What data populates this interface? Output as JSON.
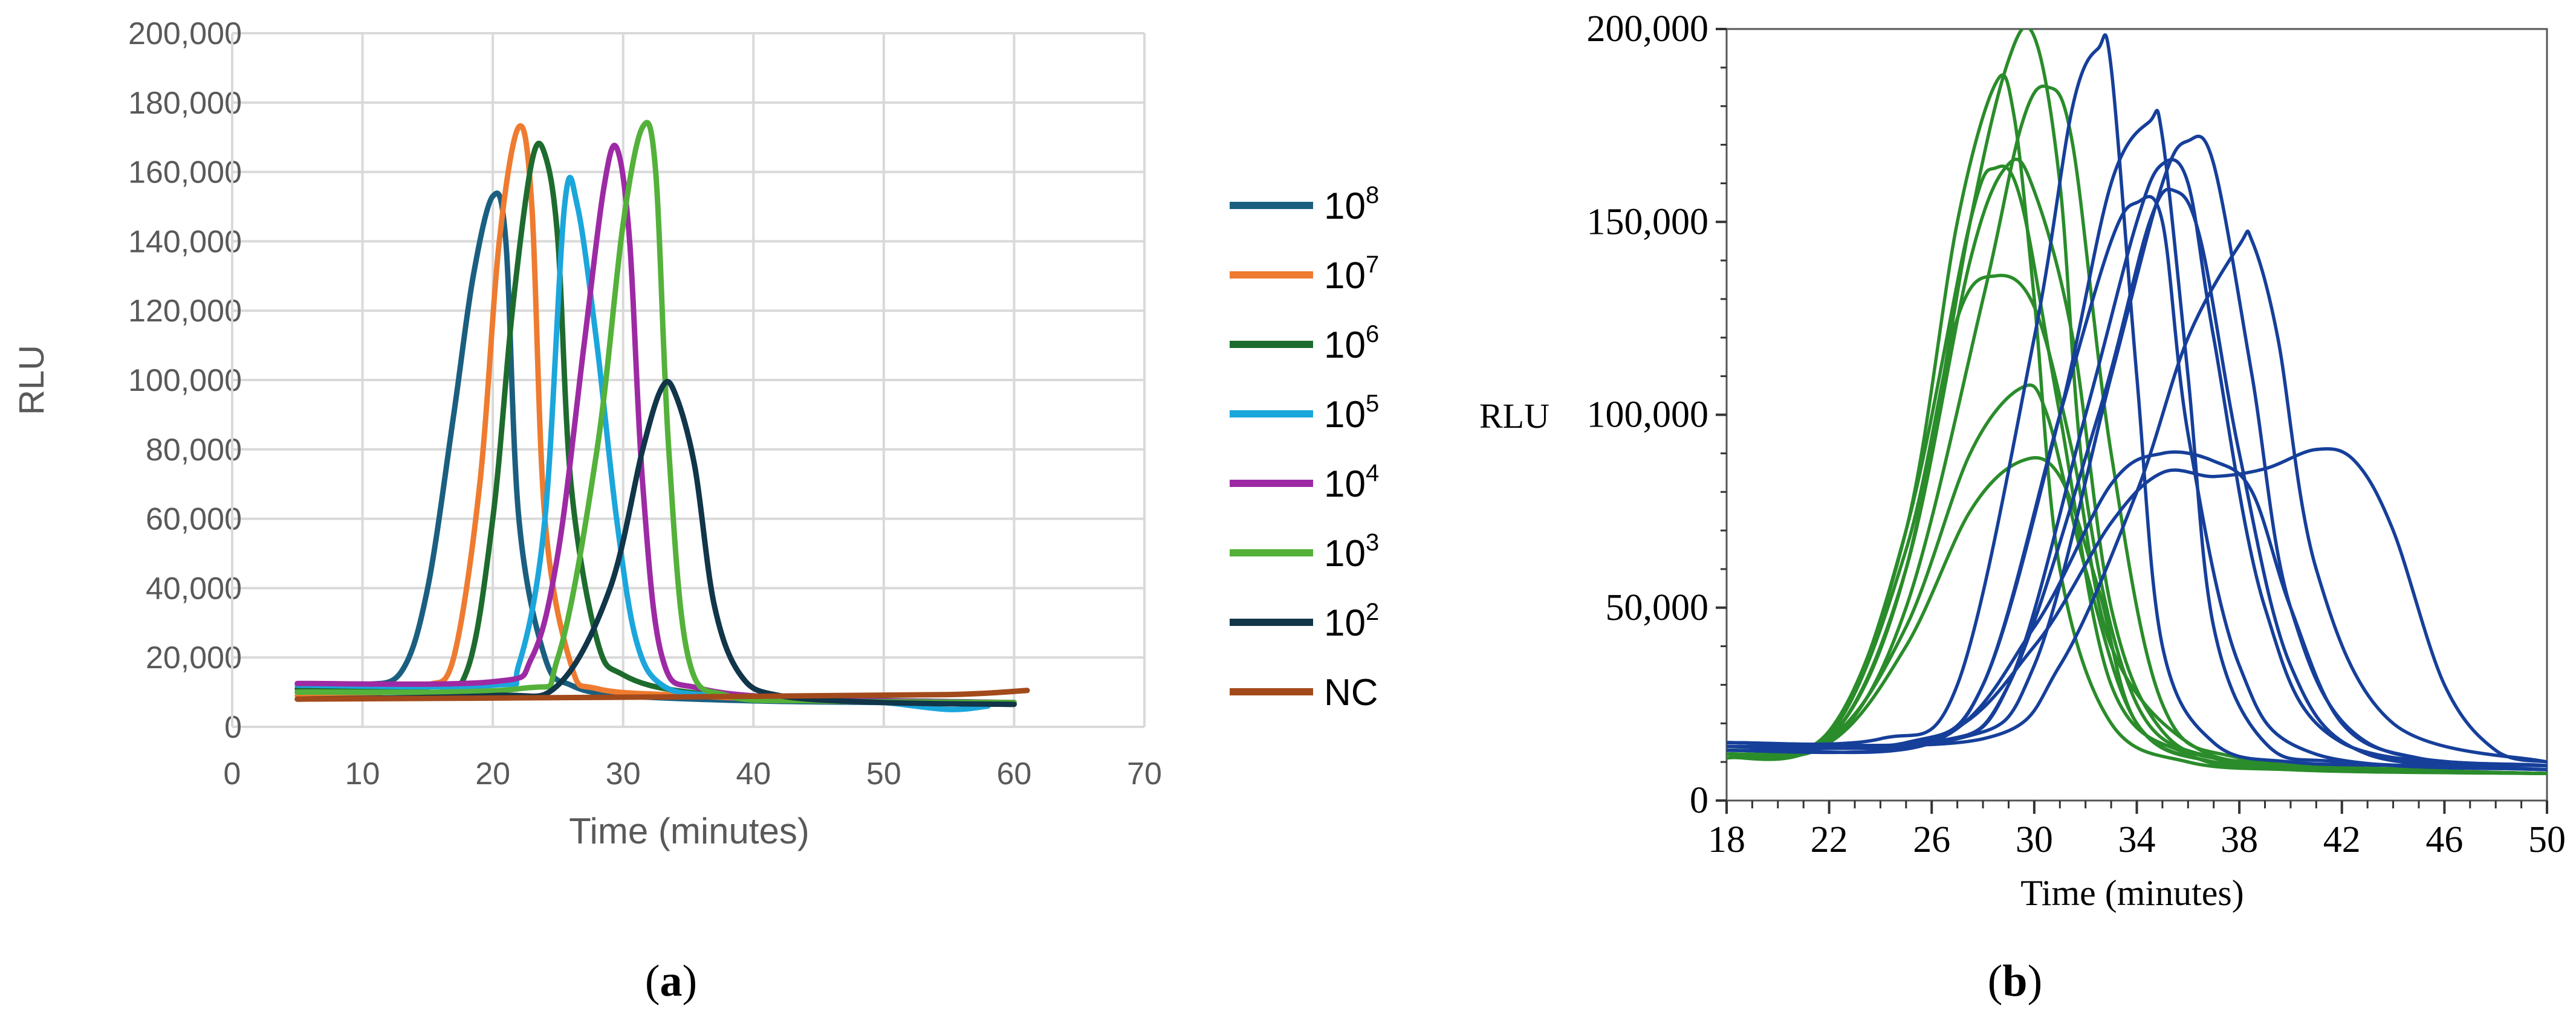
{
  "panels": {
    "a": {
      "label_open": "(",
      "label_letter": "a",
      "label_close": ")"
    },
    "b": {
      "label_open": "(",
      "label_letter": "b",
      "label_close": ")"
    }
  },
  "chart_data": [
    {
      "id": "a",
      "type": "line",
      "title": "",
      "xlabel": "Time (minutes)",
      "ylabel": "RLU",
      "xlim": [
        0,
        70
      ],
      "ylim": [
        0,
        200000
      ],
      "x_ticks": [
        0,
        10,
        20,
        30,
        40,
        50,
        60,
        70
      ],
      "x_tick_labels": [
        "0",
        "10",
        "20",
        "30",
        "40",
        "50",
        "60",
        "70"
      ],
      "y_ticks": [
        0,
        20000,
        40000,
        60000,
        80000,
        100000,
        120000,
        140000,
        160000,
        180000,
        200000
      ],
      "y_tick_labels": [
        "0",
        "20,000",
        "40,000",
        "60,000",
        "80,000",
        "100,000",
        "120,000",
        "140,000",
        "160,000",
        "180,000",
        "200,000"
      ],
      "grid": true,
      "legend_position": "right",
      "series": [
        {
          "name": "10",
          "sup": "8",
          "color": "#1b5f80",
          "x": [
            5,
            10,
            13,
            15,
            17,
            18.5,
            20,
            21,
            22,
            24,
            26,
            30,
            40,
            50,
            60
          ],
          "y": [
            10000,
            12000,
            16000,
            40000,
            90000,
            130000,
            153000,
            140000,
            60000,
            20000,
            12000,
            9000,
            7500,
            7000,
            6500
          ]
        },
        {
          "name": "10",
          "sup": "7",
          "color": "#ee7b2f",
          "x": [
            5,
            12,
            15,
            17,
            19,
            20.5,
            22,
            23,
            24,
            26,
            28,
            35,
            45,
            60
          ],
          "y": [
            9000,
            10000,
            12000,
            20000,
            70000,
            140000,
            173000,
            150000,
            60000,
            18000,
            11000,
            9000,
            7500,
            6500
          ]
        },
        {
          "name": "10",
          "sup": "6",
          "color": "#1e6b2e",
          "x": [
            5,
            15,
            18,
            20,
            21.5,
            23,
            24,
            25,
            26,
            28,
            30,
            35,
            45,
            60
          ],
          "y": [
            11000,
            11500,
            16000,
            60000,
            120000,
            163000,
            165000,
            140000,
            70000,
            25000,
            15000,
            10000,
            8000,
            7000
          ]
        },
        {
          "name": "10",
          "sup": "5",
          "color": "#1ba6dc",
          "x": [
            5,
            20,
            22,
            24,
            25.5,
            26.5,
            28,
            29.5,
            31,
            33,
            37,
            45,
            50,
            55,
            58
          ],
          "y": [
            12000,
            12000,
            18000,
            60000,
            150000,
            150000,
            110000,
            60000,
            25000,
            12000,
            9000,
            8000,
            7000,
            5000,
            6000
          ]
        },
        {
          "name": "10",
          "sup": "4",
          "color": "#9d2aa4",
          "x": [
            5,
            20,
            23,
            25,
            27,
            28.5,
            29.5,
            30.5,
            31.5,
            33,
            36,
            45,
            60
          ],
          "y": [
            12500,
            13000,
            20000,
            50000,
            110000,
            155000,
            167000,
            140000,
            70000,
            20000,
            11000,
            8000,
            7000
          ]
        },
        {
          "name": "10",
          "sup": "3",
          "color": "#54b13a",
          "x": [
            5,
            22,
            25,
            28,
            30,
            31.5,
            32.5,
            33.5,
            35,
            38,
            45,
            60
          ],
          "y": [
            10000,
            11000,
            20000,
            80000,
            145000,
            173000,
            160000,
            80000,
            20000,
            9000,
            7500,
            7000
          ]
        },
        {
          "name": "10",
          "sup": "2",
          "color": "#113549",
          "x": [
            5,
            20,
            25,
            29,
            31.5,
            33,
            34,
            35.5,
            37,
            39,
            42,
            50,
            60
          ],
          "y": [
            8000,
            9000,
            12000,
            40000,
            80000,
            98000,
            96000,
            75000,
            35000,
            15000,
            9000,
            7000,
            6500
          ]
        },
        {
          "name": "NC",
          "sup": "",
          "color": "#a34a1c",
          "x": [
            5,
            20,
            40,
            55,
            61
          ],
          "y": [
            8000,
            8300,
            8800,
            9300,
            10500
          ]
        }
      ]
    },
    {
      "id": "b",
      "type": "line",
      "title": "",
      "xlabel": "Time (minutes)",
      "ylabel": "RLU",
      "xlim": [
        18,
        50
      ],
      "ylim": [
        0,
        200000
      ],
      "x_ticks": [
        18,
        22,
        26,
        30,
        34,
        38,
        42,
        46,
        50
      ],
      "x_tick_labels": [
        "18",
        "22",
        "26",
        "30",
        "34",
        "38",
        "42",
        "46",
        "50"
      ],
      "y_ticks": [
        0,
        50000,
        100000,
        150000,
        200000
      ],
      "y_tick_labels": [
        "0",
        "50,000",
        "100,000",
        "150,000",
        "200,000"
      ],
      "grid": false,
      "series": [
        {
          "group": "green",
          "color": "#2a8c2a",
          "x": [
            18,
            22,
            25,
            27,
            28.5,
            29.2,
            30,
            31,
            33,
            36,
            40,
            44,
            50
          ],
          "y": [
            11000,
            18000,
            70000,
            150000,
            186000,
            178000,
            130000,
            60000,
            20000,
            10000,
            8000,
            7500,
            7000
          ]
        },
        {
          "group": "green",
          "color": "#2a8c2a",
          "x": [
            18,
            22,
            25,
            27.5,
            29,
            30,
            31,
            32,
            34,
            37,
            42,
            50
          ],
          "y": [
            12000,
            16000,
            60000,
            150000,
            192000,
            198000,
            160000,
            80000,
            25000,
            11000,
            8000,
            7000
          ]
        },
        {
          "group": "green",
          "color": "#2a8c2a",
          "x": [
            18,
            22,
            25,
            28,
            29.5,
            30.5,
            31.5,
            33,
            35,
            38,
            45,
            50
          ],
          "y": [
            12000,
            15000,
            50000,
            130000,
            175000,
            185000,
            170000,
            90000,
            25000,
            11000,
            8000,
            7000
          ]
        },
        {
          "group": "green",
          "color": "#2a8c2a",
          "x": [
            18,
            22,
            25,
            27.5,
            28.5,
            29.5,
            31,
            33,
            36,
            40,
            50
          ],
          "y": [
            11000,
            17000,
            70000,
            150000,
            164000,
            155000,
            100000,
            30000,
            12000,
            8000,
            7000
          ]
        },
        {
          "group": "green",
          "color": "#2a8c2a",
          "x": [
            18,
            22,
            25,
            27.5,
            29,
            30,
            31.5,
            33,
            35,
            38,
            44,
            50
          ],
          "y": [
            12000,
            16000,
            60000,
            140000,
            165000,
            158000,
            120000,
            50000,
            18000,
            10000,
            8000,
            7000
          ]
        },
        {
          "group": "green",
          "color": "#2a8c2a",
          "x": [
            18,
            22,
            25,
            27,
            28.5,
            30,
            31.5,
            33,
            36,
            40,
            50
          ],
          "y": [
            12000,
            17000,
            65000,
            125000,
            136000,
            128000,
            90000,
            40000,
            15000,
            9000,
            7000
          ]
        },
        {
          "group": "green",
          "color": "#2a8c2a",
          "x": [
            18,
            22,
            25,
            27.5,
            29.5,
            30.5,
            32,
            34,
            37,
            42,
            50
          ],
          "y": [
            13000,
            16000,
            45000,
            90000,
            107000,
            100000,
            60000,
            20000,
            10000,
            8000,
            7000
          ]
        },
        {
          "group": "green",
          "color": "#2a8c2a",
          "x": [
            18,
            22,
            25,
            27.5,
            29.5,
            31,
            32.5,
            34,
            37,
            42,
            50
          ],
          "y": [
            12000,
            15000,
            40000,
            75000,
            88000,
            84000,
            55000,
            20000,
            10000,
            8000,
            7000
          ]
        },
        {
          "group": "blue",
          "color": "#163f9a",
          "x": [
            18,
            24,
            27,
            30,
            31.5,
            32.5,
            33,
            34,
            35,
            37,
            40,
            45,
            50
          ],
          "y": [
            15000,
            16000,
            30000,
            120000,
            180000,
            195000,
            190000,
            110000,
            40000,
            15000,
            10000,
            9000,
            8000
          ]
        },
        {
          "group": "blue",
          "color": "#163f9a",
          "x": [
            18,
            25,
            28,
            31,
            33,
            34.5,
            35,
            36,
            37,
            39,
            42,
            50
          ],
          "y": [
            14000,
            15000,
            30000,
            100000,
            160000,
            176000,
            172000,
            110000,
            45000,
            15000,
            10000,
            8000
          ]
        },
        {
          "group": "blue",
          "color": "#163f9a",
          "x": [
            18,
            25,
            28,
            31,
            33,
            34,
            35,
            36,
            38,
            41,
            50
          ],
          "y": [
            13000,
            14000,
            30000,
            100000,
            145000,
            155000,
            150000,
            95000,
            35000,
            12000,
            8000
          ]
        },
        {
          "group": "blue",
          "color": "#163f9a",
          "x": [
            18,
            26,
            29,
            32,
            34,
            35,
            36,
            37,
            39,
            42,
            50
          ],
          "y": [
            14000,
            15000,
            30000,
            100000,
            150000,
            165000,
            160000,
            120000,
            50000,
            15000,
            9000
          ]
        },
        {
          "group": "blue",
          "color": "#163f9a",
          "x": [
            18,
            26,
            29,
            32.5,
            34.5,
            35.5,
            36.5,
            38,
            40,
            43,
            50
          ],
          "y": [
            14000,
            15000,
            30000,
            100000,
            150000,
            158000,
            145000,
            90000,
            35000,
            12000,
            9000
          ]
        },
        {
          "group": "blue",
          "color": "#163f9a",
          "x": [
            18,
            27,
            30,
            33,
            35,
            36,
            37,
            38.5,
            40,
            43,
            50
          ],
          "y": [
            15000,
            16000,
            35000,
            110000,
            160000,
            171000,
            165000,
            110000,
            50000,
            15000,
            9000
          ]
        },
        {
          "group": "blue",
          "color": "#163f9a",
          "x": [
            18,
            28,
            31,
            34,
            36,
            38,
            38.5,
            39.5,
            41,
            44,
            50
          ],
          "y": [
            15000,
            16000,
            35000,
            80000,
            120000,
            144000,
            145000,
            120000,
            60000,
            20000,
            10000
          ]
        },
        {
          "group": "blue",
          "color": "#163f9a",
          "x": [
            18,
            26,
            30,
            33,
            35,
            37,
            39,
            41,
            42.5,
            44,
            46,
            48,
            50
          ],
          "y": [
            15000,
            16000,
            40000,
            72000,
            85000,
            84000,
            86000,
            91000,
            88000,
            70000,
            30000,
            13000,
            10000
          ]
        },
        {
          "group": "blue",
          "color": "#163f9a",
          "x": [
            18,
            26,
            30,
            33,
            35,
            37,
            38.5,
            40,
            42,
            45,
            50
          ],
          "y": [
            14000,
            15000,
            45000,
            82000,
            90000,
            88000,
            80000,
            50000,
            20000,
            11000,
            9000
          ]
        }
      ]
    }
  ]
}
